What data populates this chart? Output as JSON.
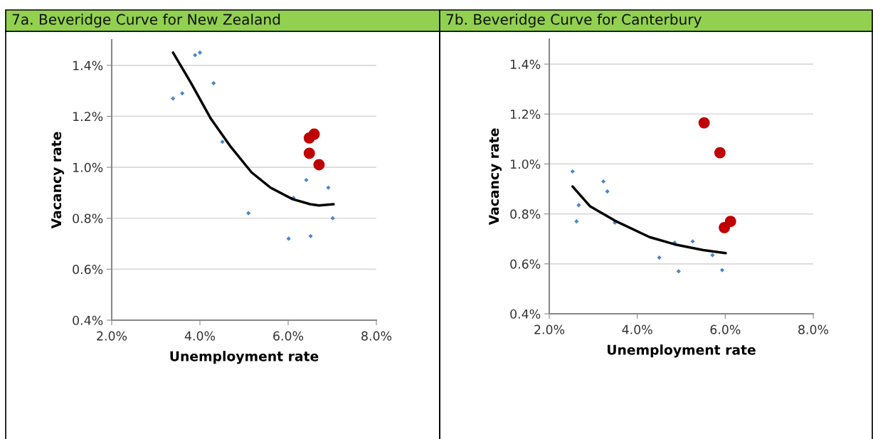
{
  "chart_data": [
    {
      "type": "scatter",
      "title": "7a. Beveridge Curve for New Zealand",
      "xlabel": "Unemployment rate",
      "ylabel": "Vacancy rate",
      "xlim": [
        2.0,
        8.0
      ],
      "ylim": [
        0.4,
        1.5
      ],
      "xticks": [
        {
          "value": 2.0,
          "label": "2.0%"
        },
        {
          "value": 4.0,
          "label": "4.0%"
        },
        {
          "value": 6.0,
          "label": "6.0%"
        },
        {
          "value": 8.0,
          "label": "8.0%"
        }
      ],
      "yticks": [
        {
          "value": 0.4,
          "label": "0.4%"
        },
        {
          "value": 0.6,
          "label": "0.6%"
        },
        {
          "value": 0.8,
          "label": "0.8%"
        },
        {
          "value": 1.0,
          "label": "1.0%"
        },
        {
          "value": 1.2,
          "label": "1.2%"
        },
        {
          "value": 1.4,
          "label": "1.4%"
        }
      ],
      "grid": "y",
      "series": [
        {
          "marker": "diamond",
          "color": "#4a86d0",
          "x": [
            3.39,
            3.6,
            3.89,
            4.0,
            4.31,
            4.51,
            5.1,
            6.01,
            6.12,
            6.41,
            6.51,
            6.91,
            7.01
          ],
          "values": [
            1.27,
            1.29,
            1.44,
            1.45,
            1.33,
            1.1,
            0.82,
            0.72,
            0.88,
            0.95,
            0.73,
            0.92,
            0.8
          ]
        },
        {
          "marker": "circle",
          "color": "#c00000",
          "x": [
            6.48,
            6.59,
            6.48,
            6.7
          ],
          "values": [
            1.115,
            1.13,
            1.055,
            1.01
          ]
        },
        {
          "type": "line",
          "marker": "none",
          "line_style": "solid",
          "color": "#000000",
          "x": [
            3.39,
            3.8,
            4.25,
            4.7,
            5.17,
            5.6,
            6.1,
            6.5,
            6.7,
            7.03
          ],
          "values": [
            1.45,
            1.33,
            1.19,
            1.08,
            0.98,
            0.92,
            0.875,
            0.855,
            0.85,
            0.855
          ]
        }
      ]
    },
    {
      "type": "scatter",
      "title": "7b. Beveridge Curve for Canterbury",
      "xlabel": "Unemployment rate",
      "ylabel": "Vacancy rate",
      "xlim": [
        2.0,
        8.0
      ],
      "ylim": [
        0.4,
        1.5
      ],
      "xticks": [
        {
          "value": 2.0,
          "label": "2.0%"
        },
        {
          "value": 4.0,
          "label": "4.0%"
        },
        {
          "value": 6.0,
          "label": "6.0%"
        },
        {
          "value": 8.0,
          "label": "8.0%"
        }
      ],
      "yticks": [
        {
          "value": 0.4,
          "label": "0.4%"
        },
        {
          "value": 0.6,
          "label": "0.6%"
        },
        {
          "value": 0.8,
          "label": "0.8%"
        },
        {
          "value": 1.0,
          "label": "1.0%"
        },
        {
          "value": 1.2,
          "label": "1.2%"
        },
        {
          "value": 1.4,
          "label": "1.4%"
        }
      ],
      "grid": "y",
      "series": [
        {
          "marker": "diamond",
          "color": "#4a86d0",
          "x": [
            2.53,
            2.67,
            2.62,
            3.23,
            3.32,
            3.49,
            4.5,
            4.85,
            4.94,
            5.26,
            5.71,
            5.93
          ],
          "values": [
            0.97,
            0.835,
            0.77,
            0.93,
            0.89,
            0.765,
            0.625,
            0.685,
            0.57,
            0.69,
            0.635,
            0.575
          ]
        },
        {
          "marker": "circle",
          "color": "#c00000",
          "x": [
            5.52,
            5.88,
            5.98,
            6.12
          ],
          "values": [
            1.165,
            1.045,
            0.745,
            0.77
          ]
        },
        {
          "type": "line",
          "marker": "none",
          "line_style": "solid",
          "color": "#000000",
          "x": [
            2.53,
            2.93,
            3.49,
            4.28,
            4.85,
            5.5,
            6.01
          ],
          "values": [
            0.91,
            0.83,
            0.773,
            0.707,
            0.678,
            0.655,
            0.643
          ]
        }
      ]
    }
  ]
}
